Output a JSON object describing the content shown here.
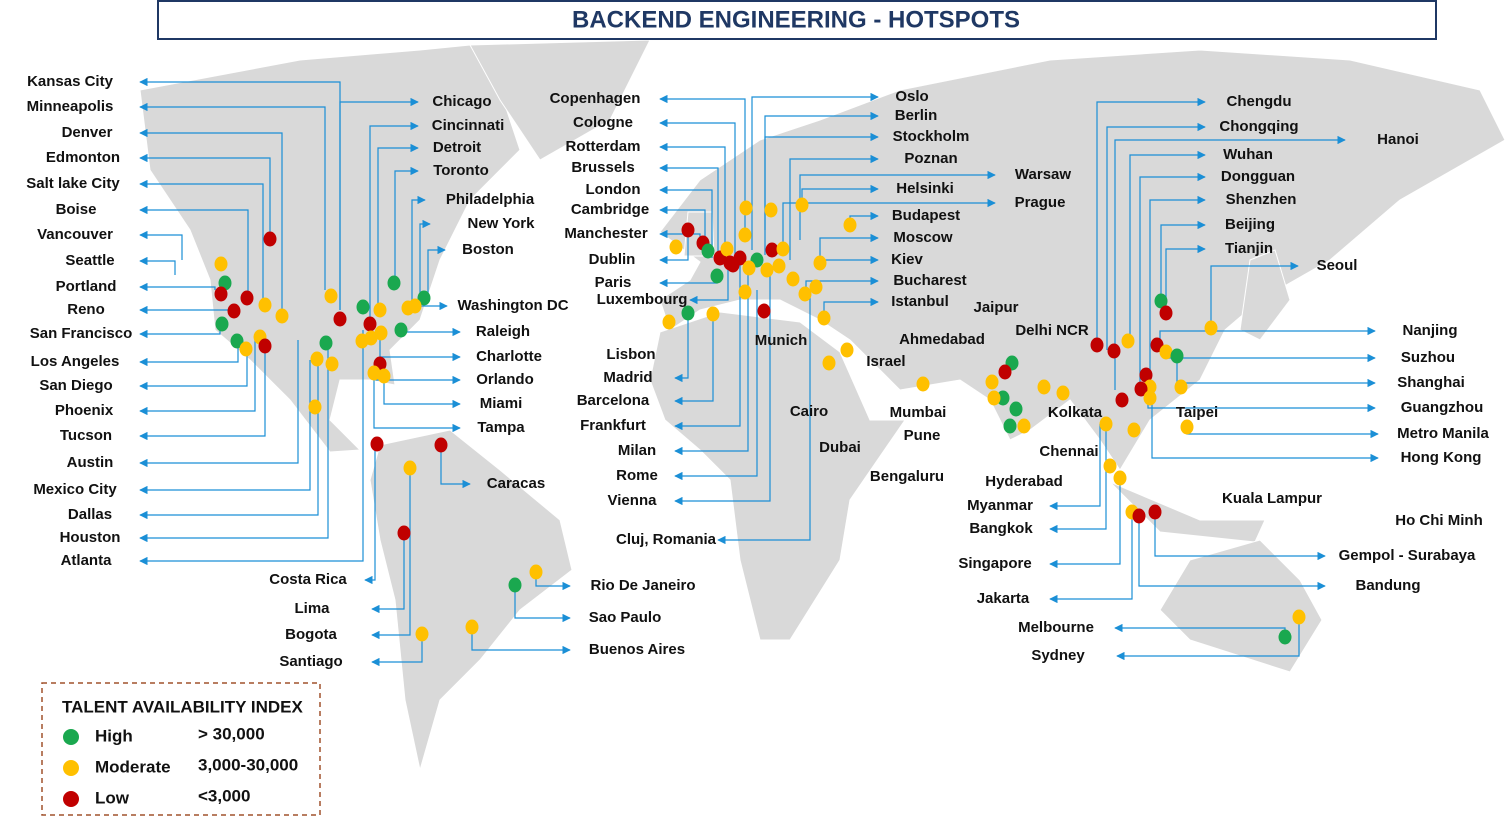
{
  "header": {
    "title": "BACKEND ENGINEERING - HOTSPOTS"
  },
  "cities": [
    "Kansas City",
    "Minneapolis",
    "Denver",
    "Edmonton",
    "Salt lake City",
    "Boise",
    "Vancouver",
    "Seattle",
    "Portland",
    "Reno",
    "San Francisco",
    "Los Angeles",
    "San Diego",
    "Phoenix",
    "Tucson",
    "Austin",
    "Mexico City",
    "Dallas",
    "Houston",
    "Atlanta",
    "Chicago",
    "Cincinnati",
    "Detroit",
    "Toronto",
    "Philadelphia",
    "New York",
    "Boston",
    "Washington DC",
    "Raleigh",
    "Charlotte",
    "Orlando",
    "Miami",
    "Tampa",
    "Caracas",
    "Costa Rica",
    "Lima",
    "Bogota",
    "Santiago",
    "Rio De Janeiro",
    "Sao Paulo",
    "Buenos Aires",
    "Copenhagen",
    "Cologne",
    "Rotterdam",
    "Brussels",
    "London",
    "Cambridge",
    "Manchester",
    "Dublin",
    "Paris",
    "Luxembourg",
    "Lisbon",
    "Madrid",
    "Barcelona",
    "Frankfurt",
    "Milan",
    "Rome",
    "Vienna",
    "Cluj, Romania",
    "Munich",
    "Cairo",
    "Dubai",
    "Israel",
    "Oslo",
    "Berlin",
    "Stockholm",
    "Poznan",
    "Warsaw",
    "Helsinki",
    "Prague",
    "Budapest",
    "Moscow",
    "Kiev",
    "Bucharest",
    "Istanbul",
    "Jaipur",
    "Delhi NCR",
    "Ahmedabad",
    "Mumbai",
    "Kolkata",
    "Pune",
    "Chennai",
    "Bengaluru",
    "Hyderabad",
    "Myanmar",
    "Bangkok",
    "Singapore",
    "Jakarta",
    "Chengdu",
    "Chongqing",
    "Hanoi",
    "Wuhan",
    "Dongguan",
    "Shenzhen",
    "Beijing",
    "Tianjin",
    "Seoul",
    "Nanjing",
    "Suzhou",
    "Shanghai",
    "Guangzhou",
    "Taipei",
    "Metro Manila",
    "Hong Kong",
    "Kuala Lampur",
    "Ho Chi Minh",
    "Gempol - Surabaya",
    "Bandung",
    "Melbourne",
    "Sydney"
  ],
  "legend": {
    "title": "TALENT AVAILABILITY INDEX",
    "items": [
      {
        "label": "High",
        "range": "> 30,000",
        "color": "#1aa84f"
      },
      {
        "label": "Moderate",
        "range": "3,000-30,000",
        "color": "#ffc000"
      },
      {
        "label": "Low",
        "range": "<3,000",
        "color": "#c00000"
      }
    ]
  }
}
